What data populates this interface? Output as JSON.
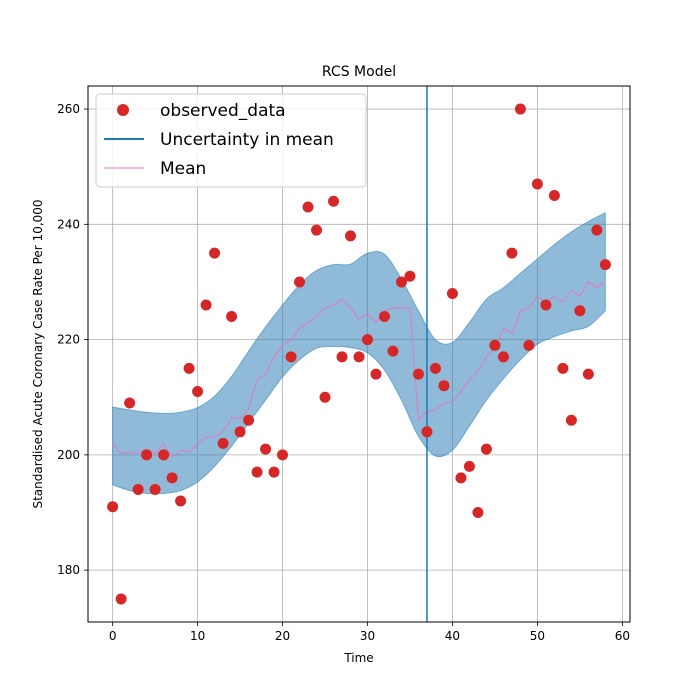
{
  "chart_data": {
    "type": "scatter",
    "title": "RCS Model",
    "xlabel": "Time",
    "ylabel": "Standardised Acute Coronary Case Rate Per 10,000",
    "xlim": [
      -2.9,
      60.9
    ],
    "ylim": [
      171,
      264
    ],
    "xticks": [
      0,
      10,
      20,
      30,
      40,
      50,
      60
    ],
    "yticks": [
      180,
      200,
      220,
      240,
      260
    ],
    "grid": true,
    "legend_position": "top-left",
    "legend": [
      {
        "label": "observed_data",
        "kind": "marker",
        "color": "#d62728"
      },
      {
        "label": "Uncertainty in mean",
        "kind": "line",
        "color": "#1f77b4"
      },
      {
        "label": "Mean",
        "kind": "line",
        "color": "#e377c2"
      }
    ],
    "vline": {
      "x": 37,
      "color": "#1f77b4"
    },
    "band_color": "#1f77b4",
    "observed": {
      "x": [
        0,
        1,
        2,
        3,
        4,
        5,
        6,
        7,
        8,
        9,
        10,
        11,
        12,
        13,
        14,
        15,
        16,
        17,
        18,
        19,
        20,
        21,
        22,
        23,
        24,
        25,
        26,
        27,
        28,
        29,
        30,
        31,
        32,
        33,
        34,
        35,
        36,
        37,
        38,
        39,
        40,
        41,
        42,
        43,
        44,
        45,
        46,
        47,
        48,
        49,
        50,
        51,
        52,
        53,
        54,
        55,
        56,
        57,
        58
      ],
      "y": [
        191,
        175,
        209,
        194,
        200,
        194,
        200,
        196,
        192,
        215,
        211,
        226,
        235,
        202,
        224,
        204,
        206,
        197,
        201,
        197,
        200,
        217,
        230,
        243,
        239,
        210,
        244,
        217,
        238,
        217,
        220,
        214,
        224,
        218,
        230,
        231,
        214,
        204,
        215,
        212,
        228,
        196,
        198,
        190,
        201,
        219,
        217,
        235,
        260,
        219,
        247,
        226,
        245,
        215,
        206,
        225,
        214,
        239,
        233
      ]
    },
    "mean": {
      "x": [
        0,
        1,
        2,
        3,
        4,
        5,
        6,
        7,
        8,
        9,
        10,
        11,
        12,
        13,
        14,
        15,
        16,
        17,
        18,
        19,
        20,
        21,
        22,
        23,
        24,
        25,
        26,
        27,
        28,
        29,
        30,
        31,
        32,
        33,
        34,
        35,
        36,
        37,
        38,
        39,
        40,
        41,
        42,
        43,
        44,
        45,
        46,
        47,
        48,
        49,
        50,
        51,
        52,
        53,
        54,
        55,
        56,
        57,
        58
      ],
      "y": [
        202,
        200.2,
        200.5,
        200.3,
        201,
        200.2,
        202,
        199.6,
        200.8,
        200.5,
        201.8,
        203,
        203.2,
        204,
        206.5,
        206.3,
        208,
        213,
        214,
        217,
        219,
        220,
        222,
        223,
        224,
        225.5,
        226,
        227,
        225.5,
        223.5,
        224.5,
        223,
        225,
        225.5,
        225.5,
        225.5,
        206,
        207.5,
        207.8,
        209,
        209.2,
        211,
        213,
        214.5,
        217,
        218.5,
        222,
        221,
        225,
        225.5,
        227.5,
        226.5,
        227.5,
        226.5,
        228.5,
        227.5,
        230,
        229,
        230
      ]
    },
    "band": {
      "x": [
        0,
        2,
        4,
        6,
        8,
        10,
        12,
        14,
        16,
        18,
        20,
        22,
        24,
        26,
        28,
        30,
        32,
        34,
        36,
        38,
        40,
        42,
        44,
        46,
        48,
        50,
        52,
        54,
        56,
        58
      ],
      "upper": [
        208.3,
        207.8,
        207.4,
        207.2,
        207.4,
        208.2,
        210.2,
        213.6,
        218,
        222.2,
        226,
        229.5,
        232,
        233,
        233.1,
        235,
        234.8,
        230.5,
        225,
        220,
        219.5,
        223,
        227,
        229,
        231.5,
        234,
        236.5,
        238.7,
        240.5,
        242
      ],
      "lower": [
        194.8,
        193.8,
        193.3,
        193.3,
        193.8,
        195.3,
        198,
        201.5,
        205.5,
        209.5,
        213.5,
        216.5,
        218.5,
        218.8,
        218.6,
        217.7,
        214.7,
        209.5,
        203.2,
        199.8,
        200.8,
        205,
        209.5,
        213.2,
        216.5,
        219.2,
        220.5,
        221.5,
        222.3,
        225
      ]
    }
  }
}
